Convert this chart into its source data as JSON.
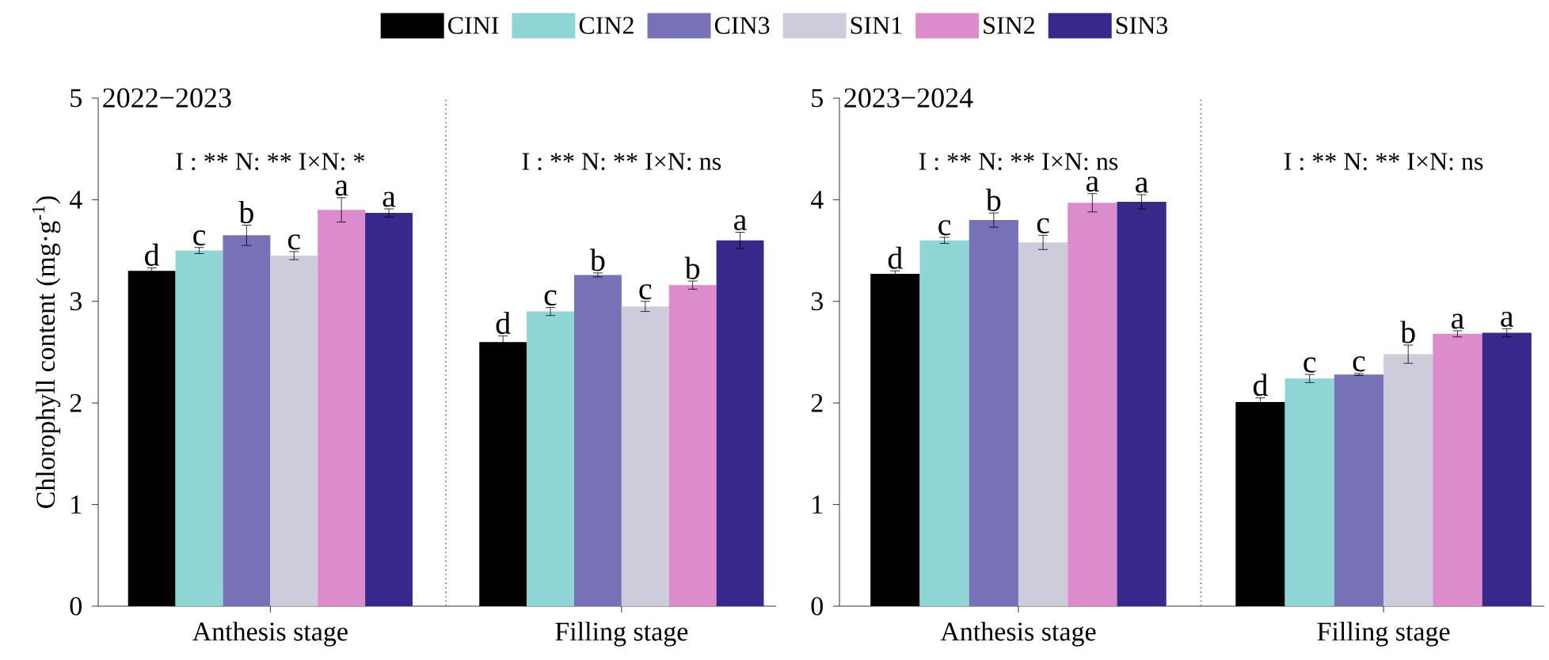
{
  "chart_data": [
    {
      "type": "bar",
      "title": "2022−2023",
      "ylabel": "Chlorophyll content (mg·g$^{-1}$)",
      "categories": [
        "Anthesis stage",
        "Filling stage"
      ],
      "ylim": [
        0,
        5
      ],
      "yticks": [
        0,
        1,
        2,
        3,
        4,
        5
      ],
      "legend": "top",
      "grid": false,
      "series": [
        {
          "name": "CINI",
          "color": "#000000",
          "values": [
            3.3,
            2.6
          ],
          "errors": [
            0.03,
            0.06
          ]
        },
        {
          "name": "CIN2",
          "color": "#8fd5d6",
          "values": [
            3.5,
            2.9
          ],
          "errors": [
            0.03,
            0.04
          ]
        },
        {
          "name": "CIN3",
          "color": "#7771b8",
          "values": [
            3.65,
            3.26
          ],
          "errors": [
            0.1,
            0.02
          ]
        },
        {
          "name": "SIN1",
          "color": "#ccccdb",
          "values": [
            3.45,
            2.95
          ],
          "errors": [
            0.04,
            0.05
          ]
        },
        {
          "name": "SIN2",
          "color": "#dc8ccc",
          "values": [
            3.9,
            3.16
          ],
          "errors": [
            0.12,
            0.04
          ]
        },
        {
          "name": "SIN3",
          "color": "#37288c",
          "values": [
            3.87,
            3.6
          ],
          "errors": [
            0.04,
            0.08
          ]
        }
      ],
      "annotations": [
        "I : ** N: ** I×N: *",
        "I : ** N: ** I×N: ns",
        "d",
        "c",
        "b",
        "c",
        "a",
        "a",
        "d",
        "c",
        "b",
        "c",
        "b",
        "a"
      ]
    },
    {
      "type": "bar",
      "title": "2023−2024",
      "categories": [
        "Anthesis stage",
        "Filling stage"
      ],
      "ylim": [
        0,
        5
      ],
      "yticks": [
        0,
        1,
        2,
        3,
        4,
        5
      ],
      "grid": false,
      "series": [
        {
          "color": "#000000",
          "values": [
            3.27,
            2.01
          ],
          "errors": [
            0.03,
            0.04
          ]
        },
        {
          "color": "#8fd5d6",
          "values": [
            3.6,
            2.24
          ],
          "errors": [
            0.03,
            0.04
          ]
        },
        {
          "color": "#7771b8",
          "values": [
            3.8,
            2.28
          ],
          "errors": [
            0.07,
            0.01
          ]
        },
        {
          "color": "#ccccdb",
          "values": [
            3.58,
            2.48
          ],
          "errors": [
            0.07,
            0.09
          ]
        },
        {
          "color": "#dc8ccc",
          "values": [
            3.97,
            2.68
          ],
          "errors": [
            0.09,
            0.03
          ]
        },
        {
          "color": "#37288c",
          "values": [
            3.98,
            2.69
          ],
          "errors": [
            0.07,
            0.04
          ]
        }
      ],
      "annotations": [
        "I : ** N: ** I×N: ns",
        "I : ** N: ** I×N: ns",
        "d",
        "c",
        "b",
        "c",
        "a",
        "a",
        "d",
        "c",
        "c",
        "b",
        "a",
        "a"
      ]
    }
  ]
}
